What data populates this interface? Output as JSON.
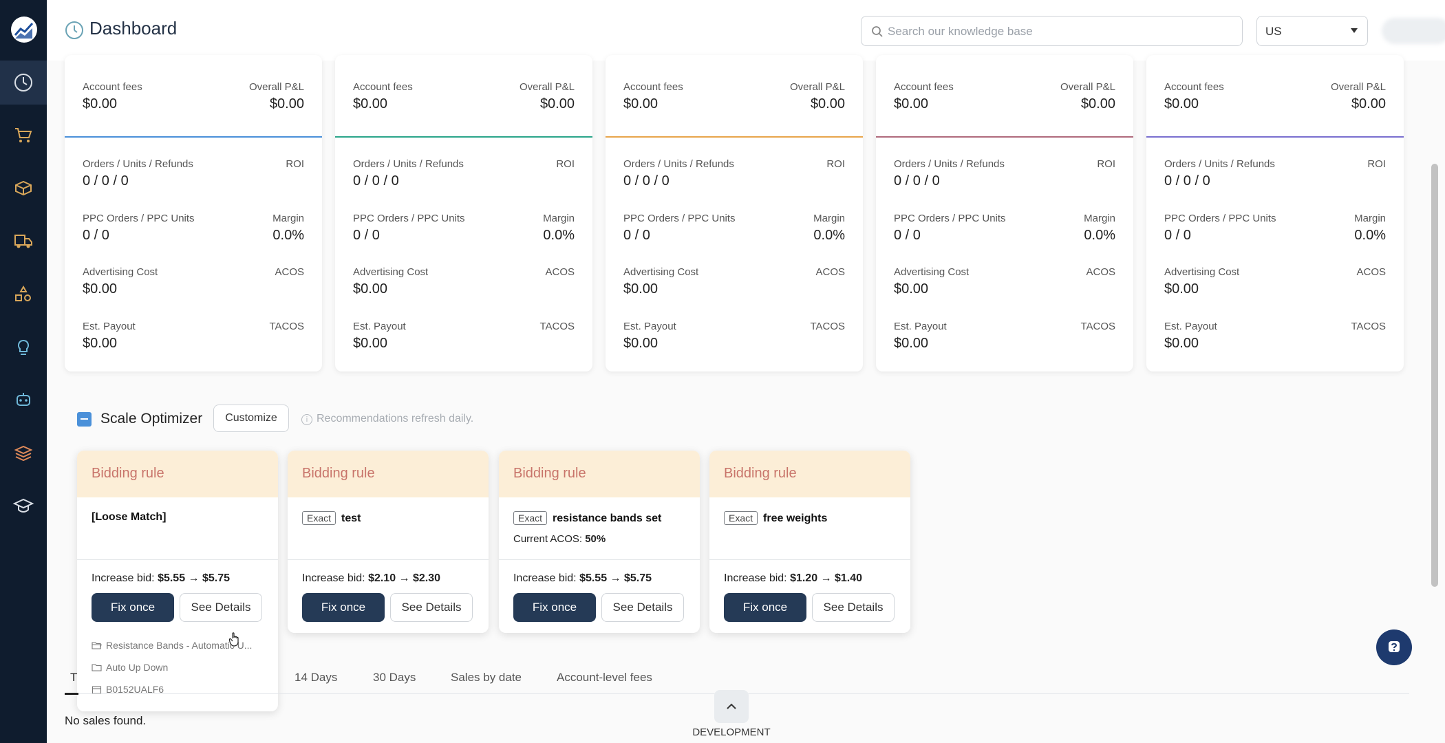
{
  "header": {
    "title": "Dashboard",
    "search_placeholder": "Search our knowledge base",
    "region": "US"
  },
  "sidebar": {
    "items": [
      {
        "name": "dashboard-icon",
        "active": true
      },
      {
        "name": "cart-icon"
      },
      {
        "name": "box-icon"
      },
      {
        "name": "delivery-truck-icon"
      },
      {
        "name": "shapes-icon"
      },
      {
        "name": "lightbulb-icon"
      },
      {
        "name": "robot-icon"
      },
      {
        "name": "layers-icon"
      },
      {
        "name": "graduation-cap-icon"
      }
    ]
  },
  "colors": {
    "sidebar_bg": "#0f1c2e",
    "primary_button": "#253a56",
    "rule_header_bg": "#fceed7",
    "rule_header_text": "#c8746a",
    "card_strips": [
      "#4a90d9",
      "#2aa58a",
      "#e8a54b",
      "#b06a7c",
      "#7a6fcf"
    ]
  },
  "metric_labels": {
    "account_fees": "Account fees",
    "overall_pl": "Overall P&L",
    "orders_units_refunds": "Orders / Units / Refunds",
    "roi": "ROI",
    "ppc_orders_units": "PPC Orders / PPC Units",
    "margin": "Margin",
    "advertising_cost": "Advertising Cost",
    "acos": "ACOS",
    "est_payout": "Est. Payout",
    "tacos": "TACOS"
  },
  "metric_cards": [
    {
      "account_fees": "$0.00",
      "overall_pl": "$0.00",
      "orders_units_refunds": "0 / 0 / 0",
      "roi": "",
      "ppc": "0 / 0",
      "margin": "0.0%",
      "ad_cost": "$0.00",
      "acos": "",
      "payout": "$0.00",
      "tacos": ""
    },
    {
      "account_fees": "$0.00",
      "overall_pl": "$0.00",
      "orders_units_refunds": "0 / 0 / 0",
      "roi": "",
      "ppc": "0 / 0",
      "margin": "0.0%",
      "ad_cost": "$0.00",
      "acos": "",
      "payout": "$0.00",
      "tacos": ""
    },
    {
      "account_fees": "$0.00",
      "overall_pl": "$0.00",
      "orders_units_refunds": "0 / 0 / 0",
      "roi": "",
      "ppc": "0 / 0",
      "margin": "0.0%",
      "ad_cost": "$0.00",
      "acos": "",
      "payout": "$0.00",
      "tacos": ""
    },
    {
      "account_fees": "$0.00",
      "overall_pl": "$0.00",
      "orders_units_refunds": "0 / 0 / 0",
      "roi": "",
      "ppc": "0 / 0",
      "margin": "0.0%",
      "ad_cost": "$0.00",
      "acos": "",
      "payout": "$0.00",
      "tacos": ""
    },
    {
      "account_fees": "$0.00",
      "overall_pl": "$0.00",
      "orders_units_refunds": "0 / 0 / 0",
      "roi": "",
      "ppc": "0 / 0",
      "margin": "0.0%",
      "ad_cost": "$0.00",
      "acos": "",
      "payout": "$0.00",
      "tacos": ""
    }
  ],
  "optimizer": {
    "title": "Scale Optimizer",
    "customize_label": "Customize",
    "refresh_note": "Recommendations refresh daily.",
    "fix_label": "Fix once",
    "details_label": "See Details",
    "rules": [
      {
        "type": "Bidding rule",
        "match": "",
        "keyword": "[Loose Match]",
        "acos_label": "",
        "acos_value": "",
        "bid_label": "Increase bid:",
        "bid_change": "$5.55 → $5.75",
        "campaign": "Resistance Bands - Automatic U...",
        "ad_group": "Auto Up Down",
        "asin": "B0152UALF6"
      },
      {
        "type": "Bidding rule",
        "match": "Exact",
        "keyword": "test",
        "acos_label": "",
        "acos_value": "",
        "bid_label": "Increase bid:",
        "bid_change": "$2.10 → $2.30"
      },
      {
        "type": "Bidding rule",
        "match": "Exact",
        "keyword": "resistance bands set",
        "acos_label": "Current ACOS:",
        "acos_value": "50%",
        "bid_label": "Increase bid:",
        "bid_change": "$5.55 → $5.75"
      },
      {
        "type": "Bidding rule",
        "match": "Exact",
        "keyword": "free weights",
        "acos_label": "",
        "acos_value": "",
        "bid_label": "Increase bid:",
        "bid_change": "$1.20 → $1.40"
      }
    ]
  },
  "tabs": [
    {
      "label": "T"
    },
    {
      "label": "14 Days"
    },
    {
      "label": "30 Days"
    },
    {
      "label": "Sales by date"
    },
    {
      "label": "Account-level fees"
    }
  ],
  "empty_message": "No sales found.",
  "footer": {
    "dev_label": "DEVELOPMENT"
  }
}
